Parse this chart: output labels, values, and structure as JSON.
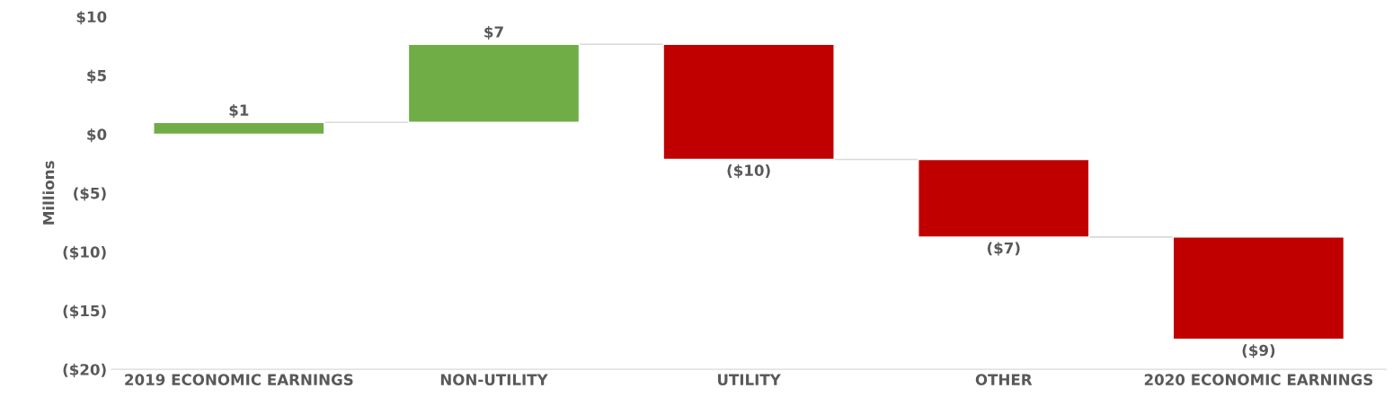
{
  "chart_data": {
    "type": "bar",
    "categories": [
      "2019 ECONOMIC EARNINGS",
      "NON-UTILITY",
      "UTILITY",
      "OTHER",
      "2020 ECONOMIC EARNINGS"
    ],
    "values": [
      1.0,
      6.65,
      -9.8,
      -6.6,
      -8.7
    ],
    "base": [
      0,
      1.0,
      7.65,
      -2.15,
      -8.75
    ],
    "colors": [
      "#70ad47",
      "#70ad47",
      "#c00000",
      "#c00000",
      "#c00000"
    ],
    "value_labels": [
      "$1",
      "$7",
      "($10)",
      "($7)",
      "($9)"
    ],
    "ylabel": "Millions",
    "ylim": [
      -20,
      10
    ],
    "yticks": [
      {
        "value": -20,
        "label": "($20)"
      },
      {
        "value": -15,
        "label": "($15)"
      },
      {
        "value": -10,
        "label": "($10)"
      },
      {
        "value": -5,
        "label": "($5)"
      },
      {
        "value": 0,
        "label": "$0"
      },
      {
        "value": 5,
        "label": "$5"
      },
      {
        "value": 10,
        "label": "$10"
      }
    ],
    "grid": false,
    "legend": false
  }
}
